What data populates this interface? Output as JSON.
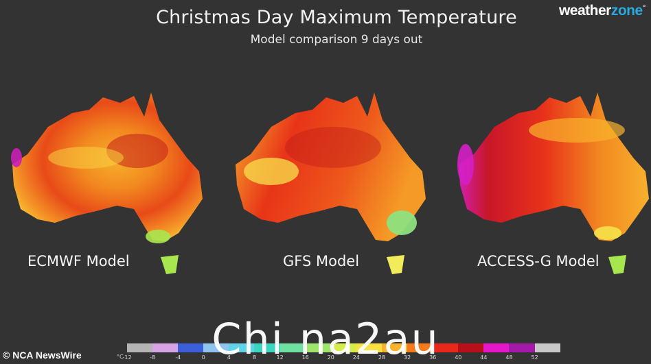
{
  "header": {
    "title": "Christmas Day Maximum Temperature",
    "subtitle": "Model comparison 9 days out"
  },
  "logo": {
    "prefix": "weather",
    "suffix": "zone",
    "mark": "°"
  },
  "maps": [
    {
      "label": "ECMWF Model"
    },
    {
      "label": "GFS Model"
    },
    {
      "label": "ACCESS-G Model"
    }
  ],
  "legend": {
    "unit": "°C",
    "ticks": [
      "-12",
      "-8",
      "-4",
      "0",
      "4",
      "8",
      "12",
      "16",
      "20",
      "24",
      "28",
      "32",
      "36",
      "40",
      "44",
      "48",
      "52"
    ],
    "colors": [
      "#b4b4b4",
      "#d7a3e6",
      "#3a5fd9",
      "#8fc3f0",
      "#5fd3e8",
      "#3ad6c0",
      "#6fe0a0",
      "#9ee66b",
      "#d6ec4c",
      "#f7e040",
      "#f8b22c",
      "#f47a1c",
      "#e8281a",
      "#b8101a",
      "#e418c8",
      "#a41aa8",
      "#c8c8c8"
    ]
  },
  "credit": "© NCA NewsWire",
  "watermark": "Chi na2au"
}
